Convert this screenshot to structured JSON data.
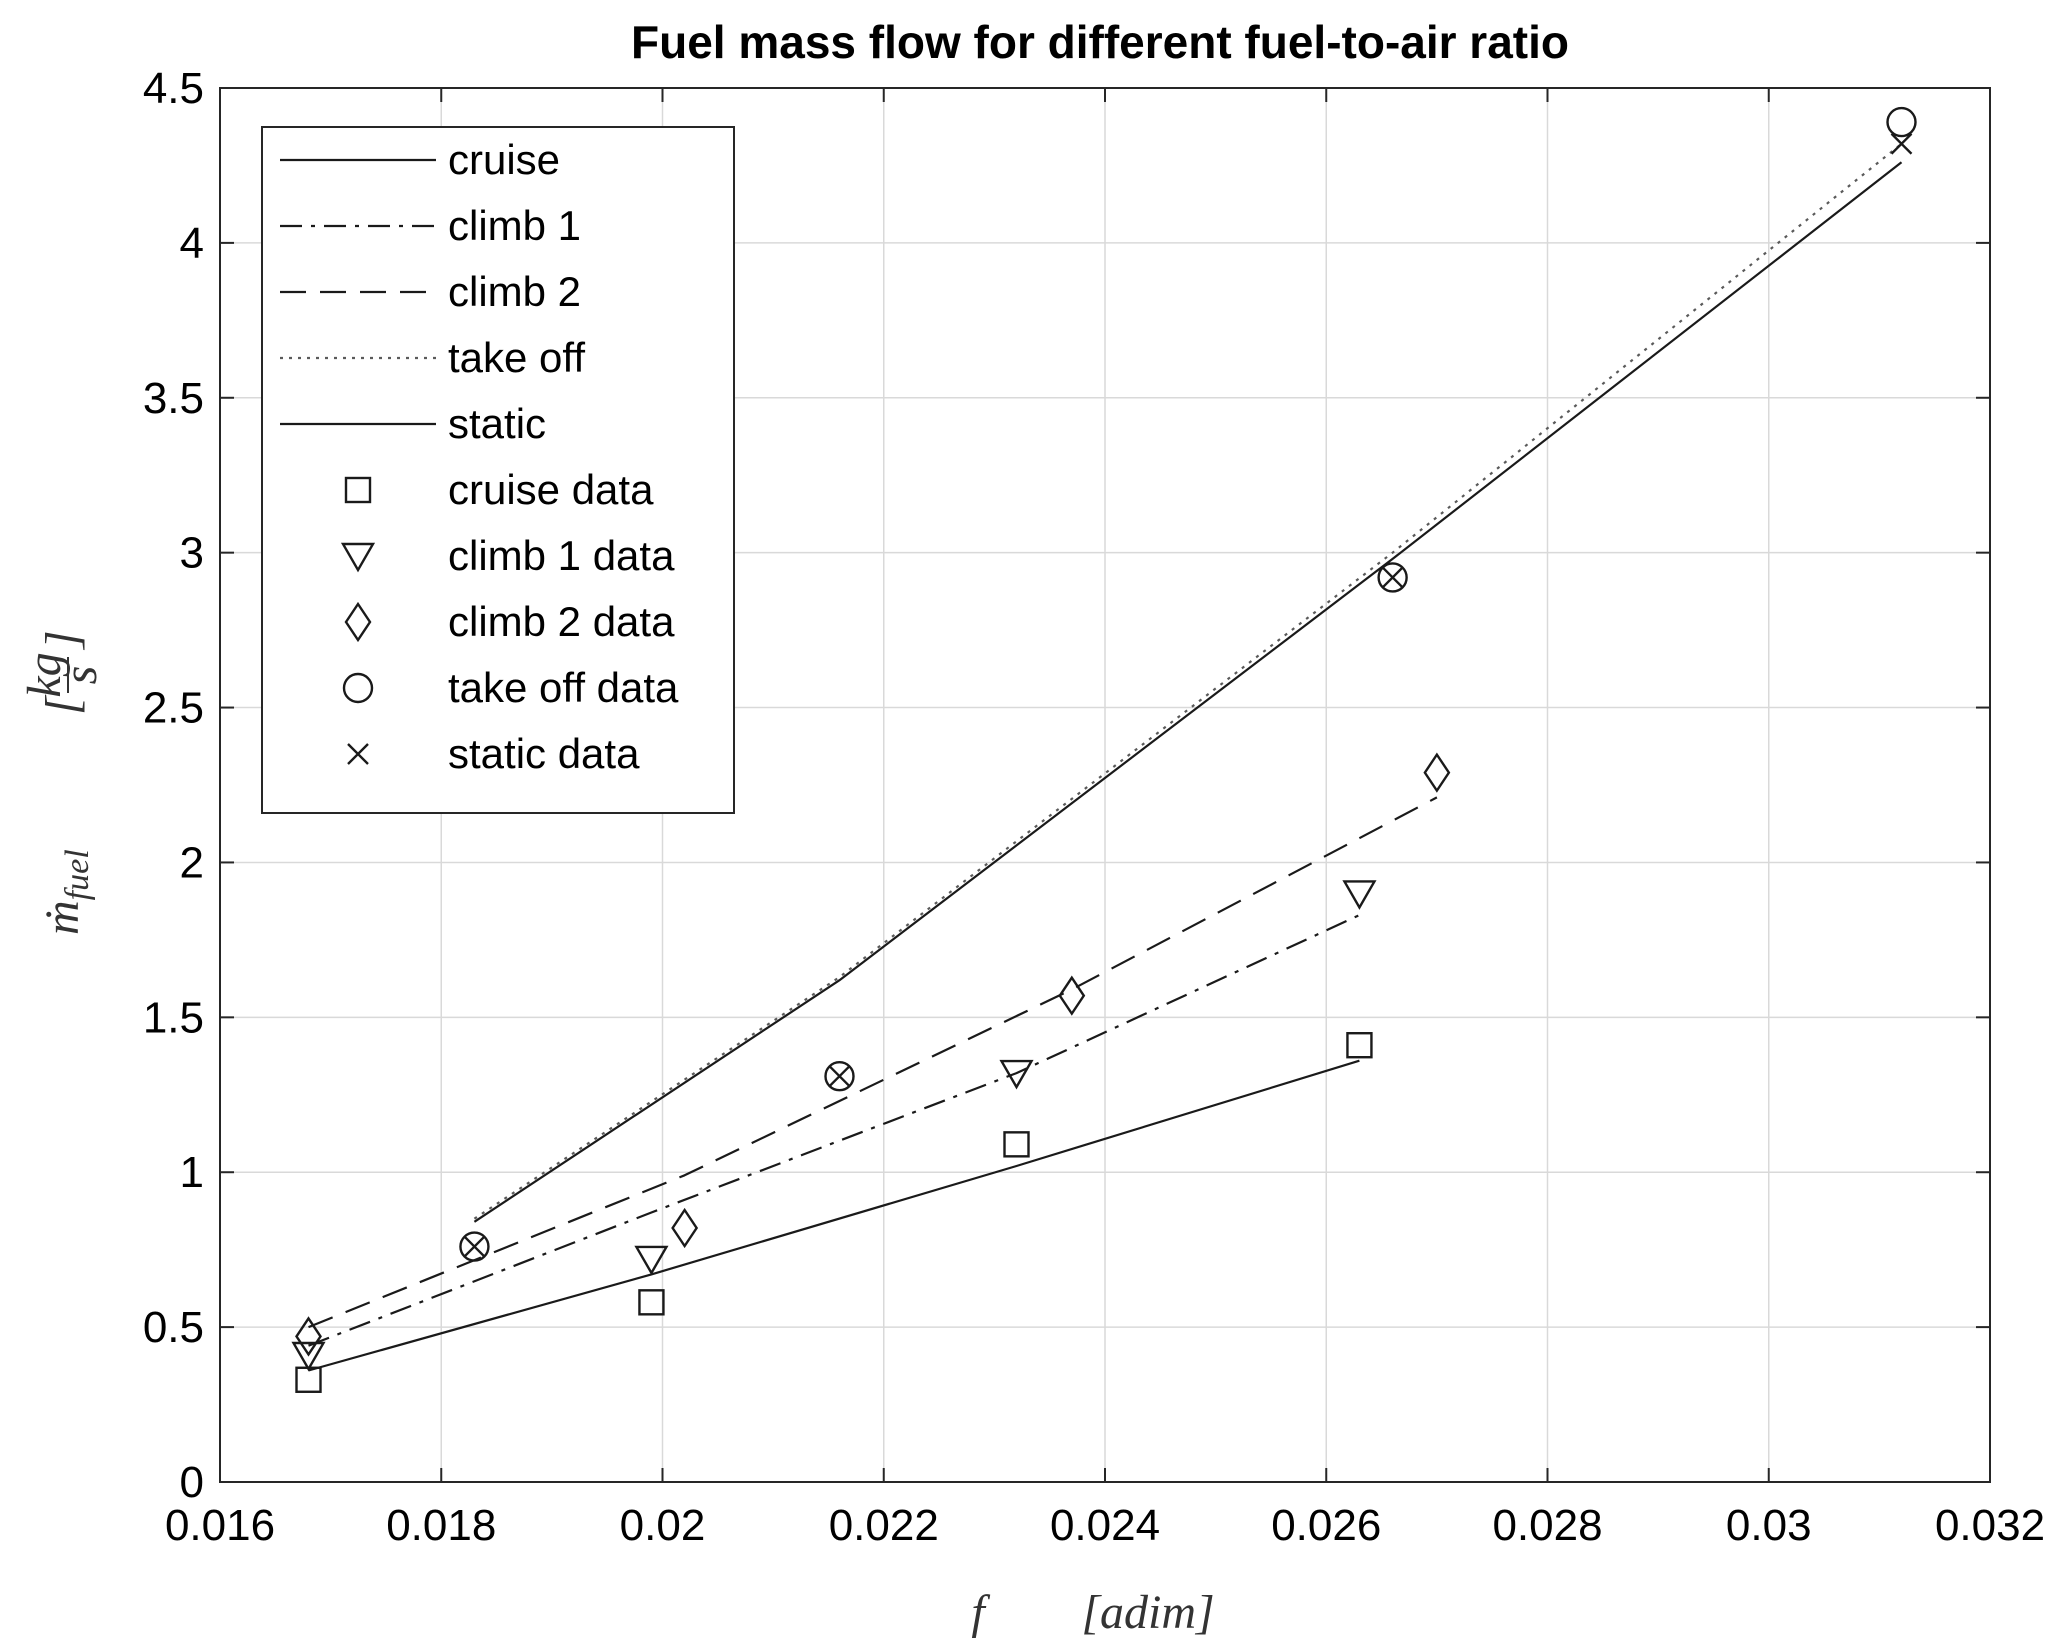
{
  "chart_data": {
    "type": "line",
    "title": "Fuel mass flow for different fuel-to-air ratio",
    "xlabel_symbol": "f",
    "xlabel_unit": "[adim]",
    "ylabel_symbol": "ṁ",
    "ylabel_subscript": "fuel",
    "ylabel_unit_num": "kg",
    "ylabel_unit_den": "s",
    "xlim": [
      0.016,
      0.032
    ],
    "ylim": [
      0,
      4.5
    ],
    "xticks": [
      0.016,
      0.018,
      0.02,
      0.022,
      0.024,
      0.026,
      0.028,
      0.03,
      0.032
    ],
    "xtick_labels": [
      "0.016",
      "0.018",
      "0.02",
      "0.022",
      "0.024",
      "0.026",
      "0.028",
      "0.03",
      "0.032"
    ],
    "yticks": [
      0,
      0.5,
      1,
      1.5,
      2,
      2.5,
      3,
      3.5,
      4,
      4.5
    ],
    "ytick_labels": [
      "0",
      "0.5",
      "1",
      "1.5",
      "2",
      "2.5",
      "3",
      "3.5",
      "4",
      "4.5"
    ],
    "grid": true,
    "legend_position": "top-left",
    "series": [
      {
        "name": "cruise",
        "style": "solid",
        "x": [
          0.0168,
          0.0199,
          0.0232,
          0.0263
        ],
        "y": [
          0.36,
          0.67,
          1.02,
          1.36
        ]
      },
      {
        "name": "climb 1",
        "style": "dashdot",
        "x": [
          0.0168,
          0.0199,
          0.0232,
          0.0263
        ],
        "y": [
          0.44,
          0.87,
          1.32,
          1.83
        ]
      },
      {
        "name": "climb 2",
        "style": "dashed",
        "x": [
          0.0168,
          0.0202,
          0.0237,
          0.027
        ],
        "y": [
          0.5,
          0.99,
          1.59,
          2.21
        ]
      },
      {
        "name": "take off",
        "style": "dotted",
        "x": [
          0.0183,
          0.0216,
          0.0266,
          0.0312
        ],
        "y": [
          0.85,
          1.63,
          3.0,
          4.32
        ]
      },
      {
        "name": "static",
        "style": "solid",
        "x": [
          0.0183,
          0.0216,
          0.0266,
          0.0312
        ],
        "y": [
          0.84,
          1.62,
          2.98,
          4.26
        ]
      },
      {
        "name": "cruise data",
        "marker": "square",
        "x": [
          0.0168,
          0.0199,
          0.0232,
          0.0263
        ],
        "y": [
          0.33,
          0.58,
          1.09,
          1.41
        ]
      },
      {
        "name": "climb 1 data",
        "marker": "triangle-down",
        "x": [
          0.0168,
          0.0199,
          0.0232,
          0.0263
        ],
        "y": [
          0.41,
          0.72,
          1.32,
          1.9
        ]
      },
      {
        "name": "climb 2 data",
        "marker": "diamond",
        "x": [
          0.0168,
          0.0202,
          0.0237,
          0.027
        ],
        "y": [
          0.47,
          0.82,
          1.57,
          2.29
        ]
      },
      {
        "name": "take off data",
        "marker": "circle",
        "x": [
          0.0183,
          0.0216,
          0.0266,
          0.0312
        ],
        "y": [
          0.76,
          1.31,
          2.92,
          4.39
        ]
      },
      {
        "name": "static data",
        "marker": "x",
        "x": [
          0.0183,
          0.0216,
          0.0266,
          0.0312
        ],
        "y": [
          0.76,
          1.31,
          2.92,
          4.32
        ]
      }
    ]
  }
}
